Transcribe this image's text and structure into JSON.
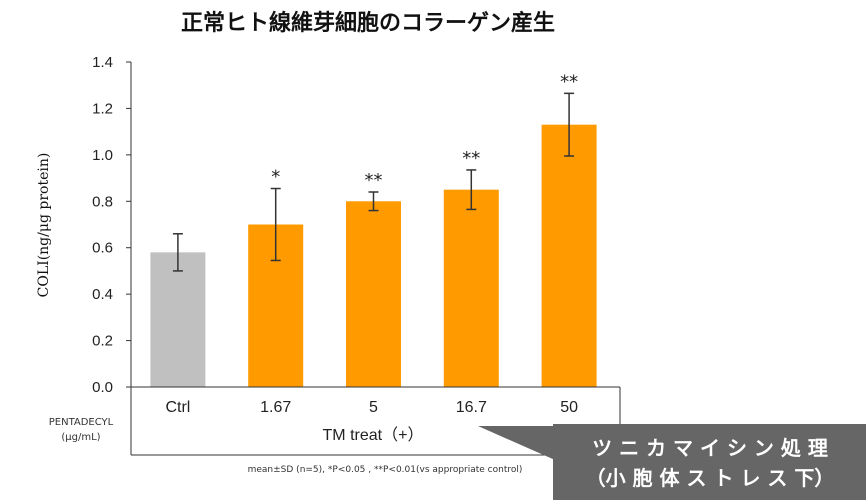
{
  "chart_data": {
    "type": "bar",
    "title": "正常ヒト線維芽細胞のコラーゲン産生",
    "ylabel": "COLI(ng/μg protein)",
    "xlabel": "TM treat（+）",
    "ylim": [
      0,
      1.4
    ],
    "yticks": [
      "0.0",
      "0.2",
      "0.4",
      "0.6",
      "0.8",
      "1.0",
      "1.2",
      "1.4"
    ],
    "ytick_values": [
      0,
      0.2,
      0.4,
      0.6,
      0.8,
      1.0,
      1.2,
      1.4
    ],
    "categories": [
      "Ctrl",
      "1.67",
      "5",
      "16.7",
      "50"
    ],
    "values": [
      0.58,
      0.7,
      0.8,
      0.85,
      1.13
    ],
    "errors": [
      0.08,
      0.155,
      0.04,
      0.085,
      0.135
    ],
    "significance": [
      "",
      "*",
      "**",
      "**",
      "**"
    ],
    "colors": [
      "#c0c0c0",
      "#ff9a00",
      "#ff9a00",
      "#ff9a00",
      "#ff9a00"
    ],
    "grid": false
  },
  "treatment_label": {
    "line1": "PENTADECYL",
    "line2": "(μg/mL)"
  },
  "footnote": "mean±SD (n=5), *P<0.05 , **P<0.01(vs appropriate control)",
  "callout": {
    "line1": "ツ ニ カ マ イ シ ン 処 理",
    "line2": "（小 胞 体 ス ト レ ス 下）",
    "bg_color": "#666666"
  }
}
